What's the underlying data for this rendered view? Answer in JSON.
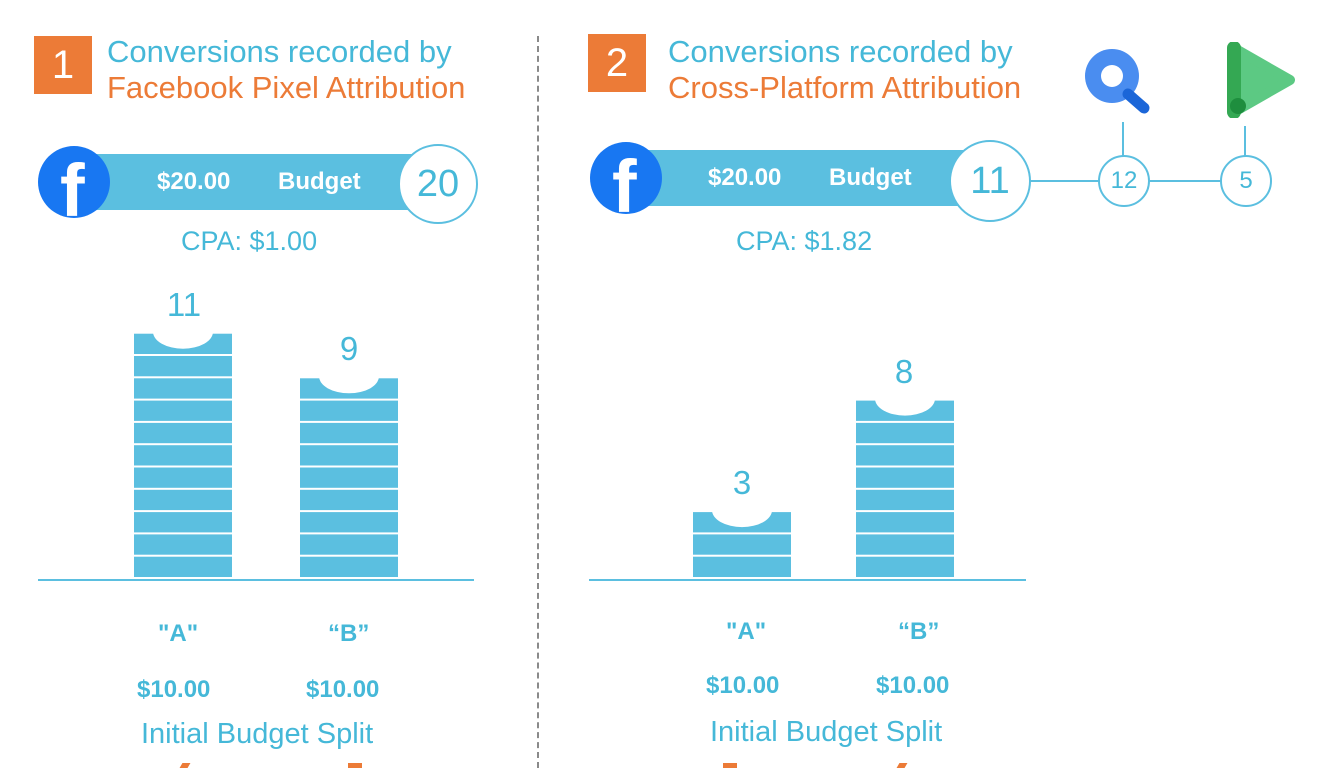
{
  "panels": [
    {
      "number": "1",
      "heading_line1": "Conversions recorded by",
      "heading_line2": "Facebook Pixel Attribution",
      "budget_amount": "$20.00",
      "budget_label": "Budget",
      "total_conversions": "20",
      "cpa": "CPA: $1.00",
      "bars": [
        {
          "label": "\"A\"",
          "value": 11,
          "value_text": "11",
          "budget": "$10.00"
        },
        {
          "label": "“B”",
          "value": 9,
          "value_text": "9",
          "budget": "$10.00"
        }
      ],
      "split_label": "Initial Budget Split"
    },
    {
      "number": "2",
      "heading_line1": "Conversions recorded by",
      "heading_line2": "Cross-Platform Attribution",
      "budget_amount": "$20.00",
      "budget_label": "Budget",
      "total_conversions": "11",
      "cpa": "CPA: $1.82",
      "extra_counts": [
        {
          "platform": "search",
          "value": "12"
        },
        {
          "platform": "play",
          "value": "5"
        }
      ],
      "bars": [
        {
          "label": "\"A\"",
          "value": 3,
          "value_text": "3",
          "budget": "$10.00"
        },
        {
          "label": "“B”",
          "value": 8,
          "value_text": "8",
          "budget": "$10.00"
        }
      ],
      "split_label": "Initial Budget Split"
    }
  ],
  "colors": {
    "accent_blue": "#5bbfe0",
    "text_blue": "#45b8d8",
    "orange": "#ec7b37",
    "facebook_blue": "#1877f2",
    "search_icon_blue": "#4a8df0",
    "play_icon_green": "#34a853"
  },
  "icons": [
    "facebook-icon",
    "search-icon",
    "play-icon"
  ]
}
